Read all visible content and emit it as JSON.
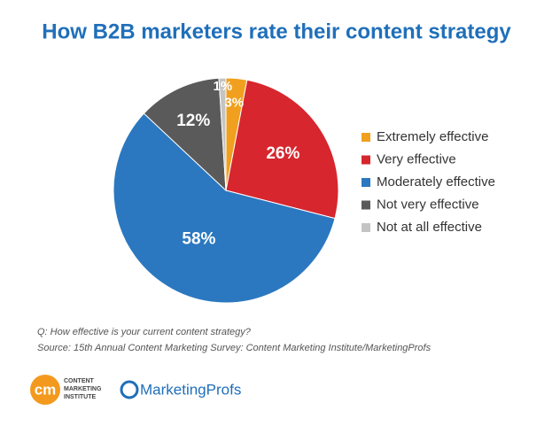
{
  "chart_data": {
    "type": "pie",
    "title": "How B2B marketers rate their content strategy",
    "categories": [
      "Extremely effective",
      "Very effective",
      "Moderately effective",
      "Not very effective",
      "Not at all effective"
    ],
    "values": [
      3,
      26,
      58,
      12,
      1
    ],
    "value_labels": [
      "3%",
      "26%",
      "58%",
      "12%",
      "1%"
    ],
    "colors": [
      "#f0a01e",
      "#d7262e",
      "#2b78c0",
      "#5a5a5a",
      "#c4c4c4"
    ],
    "legend": "right"
  },
  "footer": {
    "question": "Q: How effective is your current content strategy?",
    "source": "Source: 15th Annual Content Marketing Survey: Content Marketing Institute/MarketingProfs",
    "logos": [
      "cm",
      "CONTENT",
      "MARKETING",
      "INSTITUTE",
      "MarketingProfs"
    ]
  }
}
